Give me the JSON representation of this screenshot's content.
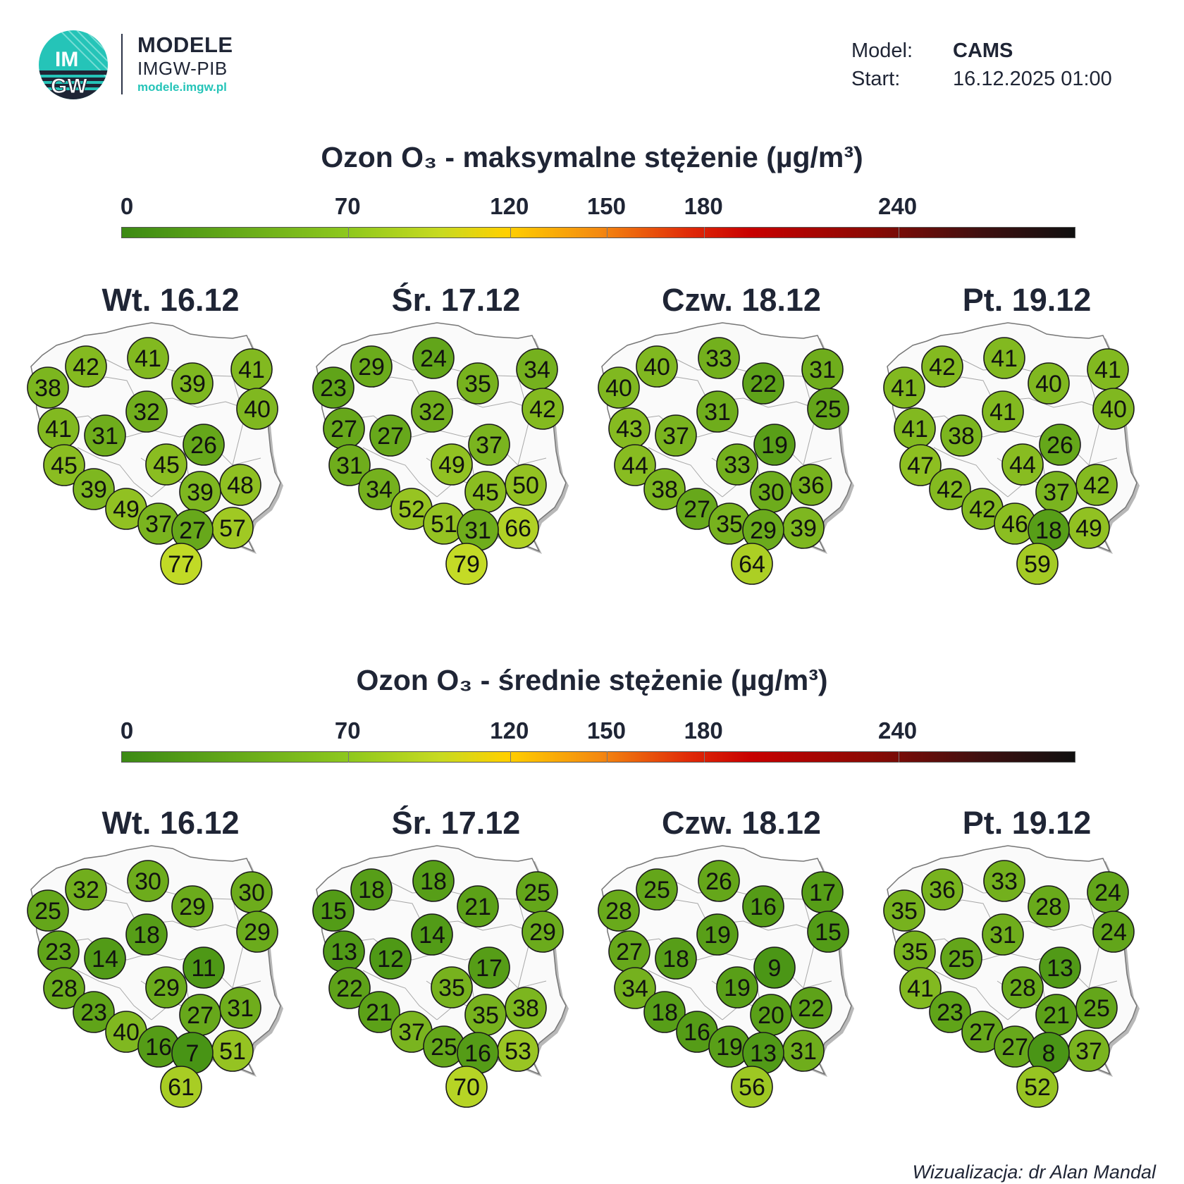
{
  "logo": {
    "circle_text_top": "IM",
    "circle_text_bottom": "GW",
    "name": "MODELE",
    "institution": "IMGW-PIB",
    "url": "modele.imgw.pl",
    "icon": "imgw-logo-icon",
    "colors": {
      "circle": "#25c4b8",
      "text": "#1f2535",
      "url": "#25c4b8"
    }
  },
  "meta": {
    "model_label": "Model:",
    "model_value": "CAMS",
    "start_label": "Start:",
    "start_value": "16.12.2025 01:00"
  },
  "colorscale": {
    "ticks": [
      "0",
      "70",
      "120",
      "150",
      "180",
      "240"
    ],
    "tick_values": [
      0,
      70,
      120,
      150,
      180,
      240
    ],
    "max": 295,
    "stops": [
      "#3c8a14",
      "#8ec81e",
      "#c8da20",
      "#ffd000",
      "#f48a10",
      "#e02a08",
      "#c80000",
      "#8a0a04",
      "#401010",
      "#101010"
    ]
  },
  "sections": [
    {
      "title": "Ozon O₃ - maksymalne stężenie (µg/m³)",
      "days": [
        {
          "label": "Wt. 16.12",
          "values": [
            42,
            41,
            38,
            39,
            41,
            32,
            40,
            41,
            31,
            26,
            45,
            45,
            48,
            39,
            39,
            49,
            37,
            57,
            27,
            77
          ]
        },
        {
          "label": "Śr. 17.12",
          "values": [
            29,
            24,
            23,
            35,
            34,
            32,
            42,
            27,
            27,
            37,
            31,
            49,
            50,
            34,
            45,
            52,
            51,
            66,
            31,
            79
          ]
        },
        {
          "label": "Czw. 18.12",
          "values": [
            40,
            33,
            40,
            22,
            31,
            31,
            25,
            43,
            37,
            19,
            44,
            33,
            36,
            38,
            30,
            27,
            35,
            39,
            29,
            64
          ]
        },
        {
          "label": "Pt. 19.12",
          "values": [
            42,
            41,
            41,
            40,
            41,
            41,
            40,
            41,
            38,
            26,
            47,
            44,
            42,
            42,
            37,
            42,
            46,
            49,
            18,
            59
          ]
        }
      ]
    },
    {
      "title": "Ozon O₃ - średnie stężenie (µg/m³)",
      "days": [
        {
          "label": "Wt. 16.12",
          "values": [
            32,
            30,
            25,
            29,
            30,
            18,
            29,
            23,
            14,
            11,
            28,
            29,
            31,
            23,
            27,
            40,
            16,
            51,
            7,
            61
          ]
        },
        {
          "label": "Śr. 17.12",
          "values": [
            18,
            18,
            15,
            21,
            25,
            14,
            29,
            13,
            12,
            17,
            22,
            35,
            38,
            21,
            35,
            37,
            25,
            53,
            16,
            70
          ]
        },
        {
          "label": "Czw. 18.12",
          "values": [
            25,
            26,
            28,
            16,
            17,
            19,
            15,
            27,
            18,
            9,
            34,
            19,
            22,
            18,
            20,
            16,
            19,
            31,
            13,
            56
          ]
        },
        {
          "label": "Pt. 19.12",
          "values": [
            36,
            33,
            35,
            28,
            24,
            31,
            24,
            35,
            25,
            13,
            41,
            28,
            25,
            23,
            21,
            27,
            27,
            37,
            8,
            52
          ]
        }
      ]
    }
  ],
  "footer": "Wizualizacja: dr Alan Mandal"
}
